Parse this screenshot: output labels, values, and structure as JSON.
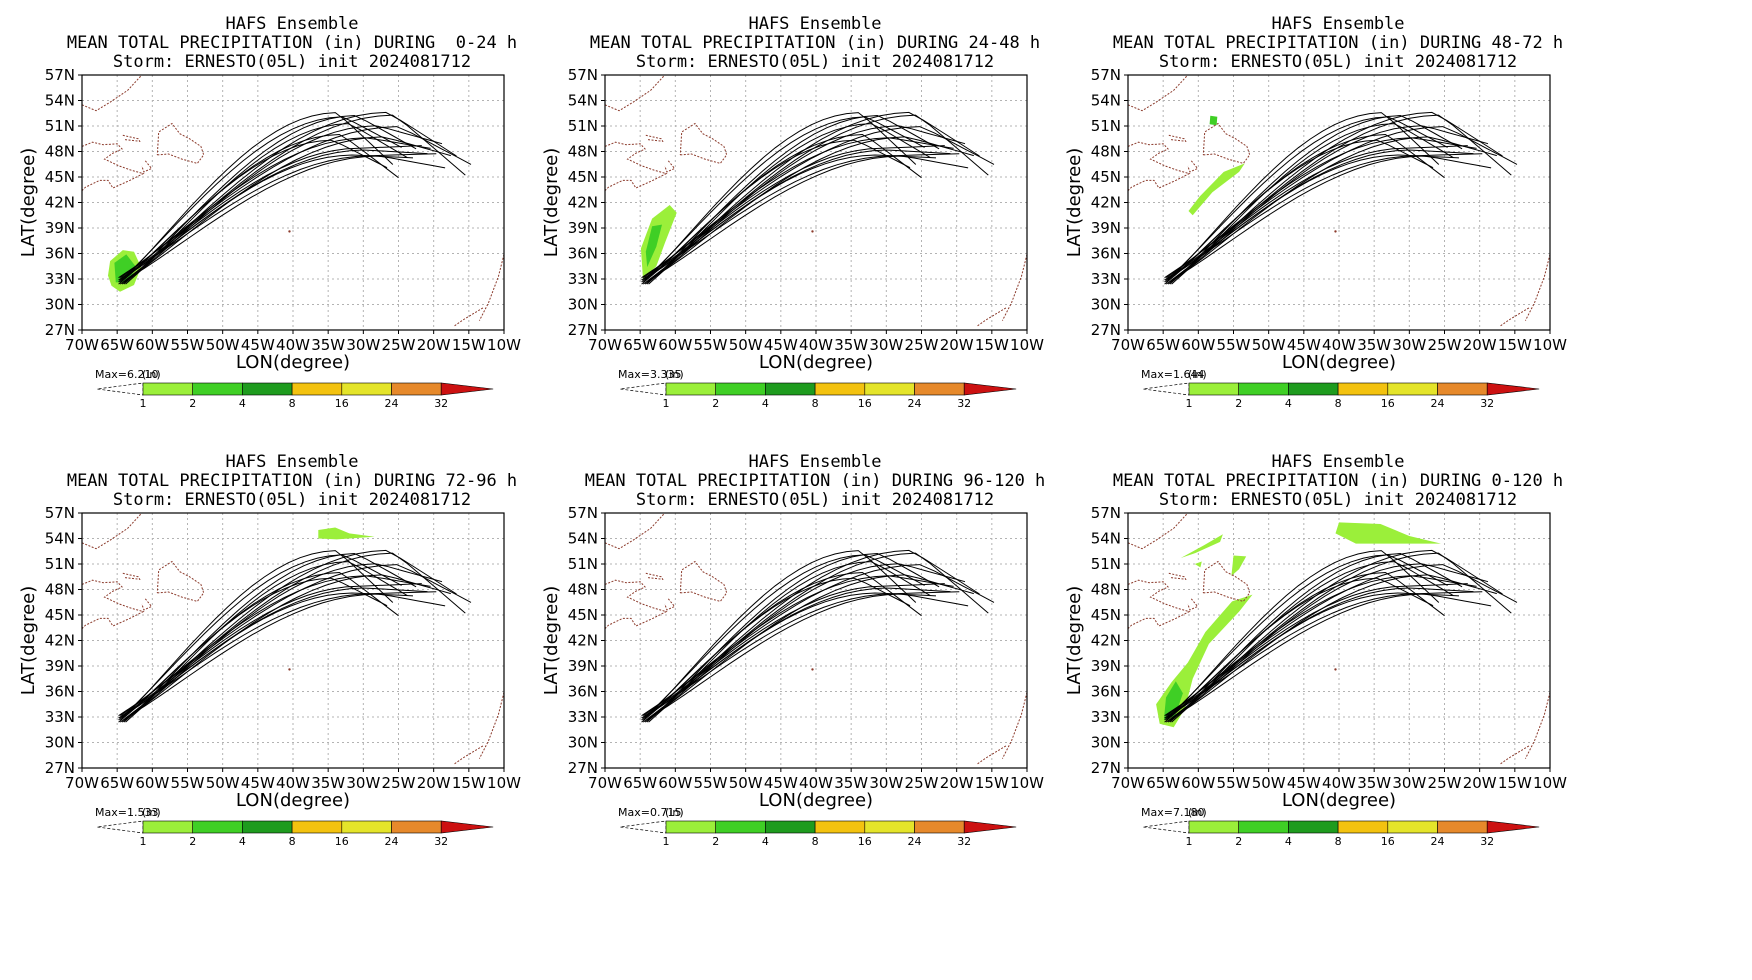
{
  "figure": {
    "panels": [
      {
        "model": "HAFS Ensemble",
        "field_line": "MEAN TOTAL PRECIPITATION (in) DURING  0-24 h",
        "storm_line": "Storm: ERNESTO(05L) init 2024081712",
        "max_label": "Max=6.210",
        "unit_label": "(in)",
        "precip_key": "p0"
      },
      {
        "model": "HAFS Ensemble",
        "field_line": "MEAN TOTAL PRECIPITATION (in) DURING 24-48 h",
        "storm_line": "Storm: ERNESTO(05L) init 2024081712",
        "max_label": "Max=3.335",
        "unit_label": "(in)",
        "precip_key": "p1"
      },
      {
        "model": "HAFS Ensemble",
        "field_line": "MEAN TOTAL PRECIPITATION (in) DURING 48-72 h",
        "storm_line": "Storm: ERNESTO(05L) init 2024081712",
        "max_label": "Max=1.644",
        "unit_label": "(in)",
        "precip_key": "p2"
      },
      {
        "model": "HAFS Ensemble",
        "field_line": "MEAN TOTAL PRECIPITATION (in) DURING 72-96 h",
        "storm_line": "Storm: ERNESTO(05L) init 2024081712",
        "max_label": "Max=1.533",
        "unit_label": "(in)",
        "precip_key": "p3"
      },
      {
        "model": "HAFS Ensemble",
        "field_line": "MEAN TOTAL PRECIPITATION (in) DURING 96-120 h",
        "storm_line": "Storm: ERNESTO(05L) init 2024081712",
        "max_label": "Max=0.715",
        "unit_label": "(in)",
        "precip_key": "p4"
      },
      {
        "model": "HAFS Ensemble",
        "field_line": "MEAN TOTAL PRECIPITATION (in) DURING 0-120 h",
        "storm_line": "Storm: ERNESTO(05L) init 2024081712",
        "max_label": "Max=7.180",
        "unit_label": "(in)",
        "precip_key": "p5"
      }
    ],
    "x_axis_label": "LON(degree)",
    "y_axis_label": "LAT(degree)",
    "x_ticks": [
      "70W",
      "65W",
      "60W",
      "55W",
      "50W",
      "45W",
      "40W",
      "35W",
      "30W",
      "25W",
      "20W",
      "15W",
      "10W"
    ],
    "y_ticks": [
      "27N",
      "30N",
      "33N",
      "36N",
      "39N",
      "42N",
      "45N",
      "48N",
      "51N",
      "54N",
      "57N"
    ],
    "lon_range": [
      -70,
      -10
    ],
    "lat_range": [
      27,
      57
    ],
    "colorbar": {
      "levels": [
        "1",
        "2",
        "4",
        "8",
        "16",
        "24",
        "32"
      ],
      "colors": [
        "#9bef3a",
        "#3fcf25",
        "#1e9b1e",
        "#f3c20f",
        "#e4e42a",
        "#e6892b",
        "#cc1111"
      ]
    },
    "colors": {
      "track": "#000000",
      "coast": "#8b3a2b",
      "grid": "#b3b3b3"
    }
  }
}
